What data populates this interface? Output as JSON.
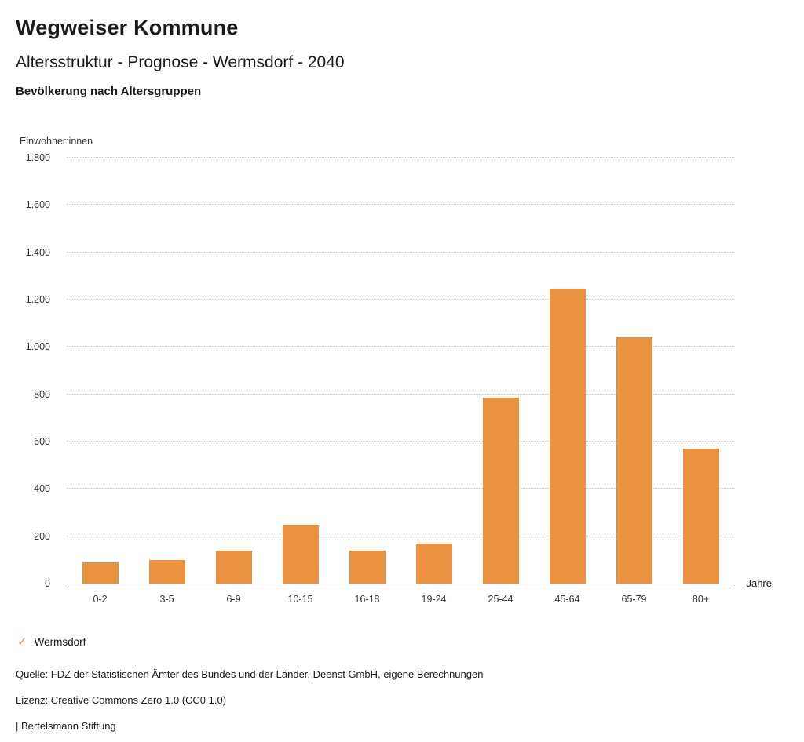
{
  "header": {
    "brand": "Wegweiser Kommune",
    "title": "Altersstruktur - Prognose - Wermsdorf - 2040",
    "subtitle": "Bevölkerung nach Altersgruppen"
  },
  "chart_data": {
    "type": "bar",
    "title": "Bevölkerung nach Altersgruppen",
    "categories": [
      "0-2",
      "3-5",
      "6-9",
      "10-15",
      "16-18",
      "19-24",
      "25-44",
      "45-64",
      "65-79",
      "80+"
    ],
    "values": [
      90,
      100,
      140,
      250,
      140,
      170,
      785,
      1245,
      1040,
      570
    ],
    "series_name": "Wermsdorf",
    "ylabel": "Einwohner:innen",
    "xlabel": "Jahre",
    "ylim": [
      0,
      1800
    ],
    "ytick_step": 200,
    "ytick_labels": [
      "0",
      "200",
      "400",
      "600",
      "800",
      "1.000",
      "1.200",
      "1.400",
      "1.600",
      "1.800"
    ],
    "grid": true,
    "legend_position": "bottom-left",
    "bar_color": "#EA9240"
  },
  "legend": {
    "check_icon": "✓",
    "label": "Wermsdorf",
    "color": "#EA9240"
  },
  "footer": {
    "source": "Quelle: FDZ der Statistischen Ämter des Bundes und der Länder, Deenst GmbH, eigene Berechnungen",
    "license": "Lizenz: Creative Commons Zero 1.0 (CC0 1.0)",
    "attribution": "| Bertelsmann Stiftung"
  }
}
